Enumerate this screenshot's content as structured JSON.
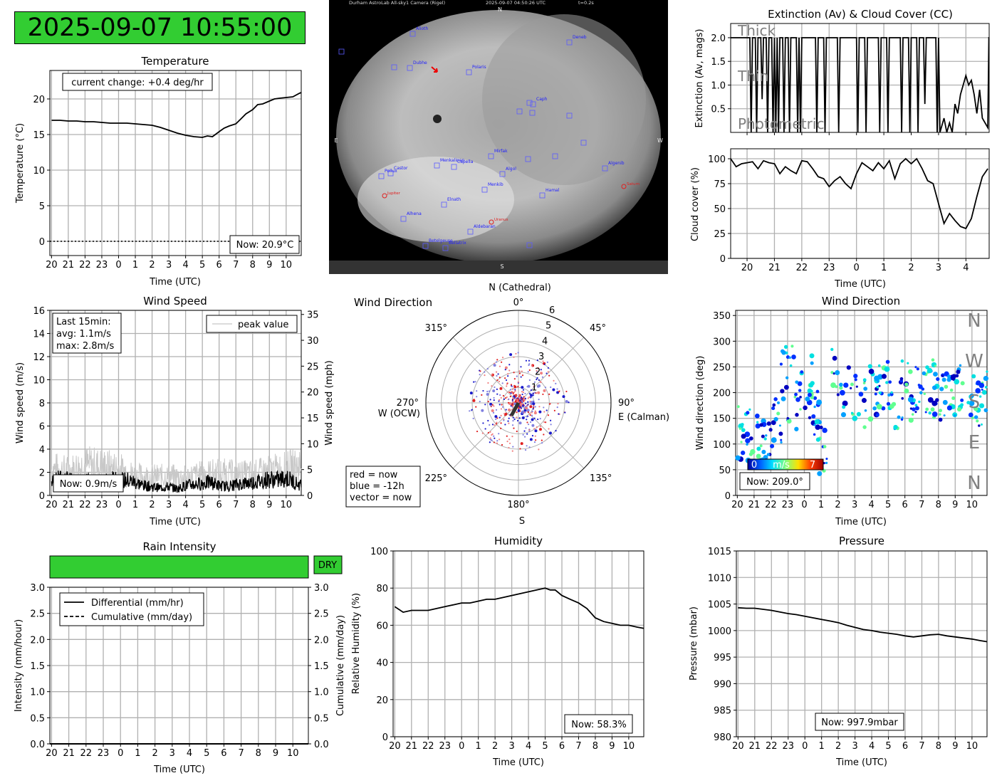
{
  "clock": "2025-09-07 10:55:00",
  "colors": {
    "ok_green": "#32cd32",
    "grid": "#b0b0b0",
    "peak_gray": "#c8c8c8",
    "label_gray": "#808080"
  },
  "sky_camera": {
    "header_left": "Durham AstroLab All-sky1 Camera (Rigel)",
    "header_date": "2025-09-07 04:50:26 UTC",
    "header_exp": "t=0.2s",
    "compass": {
      "n": "N",
      "s": "S",
      "e": "E",
      "w": "W"
    },
    "stars": [
      "Alioth",
      "Deneb",
      "Dubhe",
      "Polaris",
      "Caph",
      "Mirfak",
      "Menkalinan",
      "Capella",
      "Castor",
      "Pollux",
      "Algol",
      "Algenib",
      "Menkib",
      "Hamal",
      "Elnath",
      "Alhena",
      "Aldebaran",
      "Betelgeuse",
      "Bellatrix"
    ],
    "planets": [
      "Jupiter",
      "Uranus",
      "Saturn"
    ]
  },
  "temperature": {
    "title": "Temperature",
    "ylabel": "Temperature (°C)",
    "xlabel": "Time (UTC)",
    "change": "current change: +0.4 deg/hr",
    "now": "Now: 20.9°C"
  },
  "extinction": {
    "title": "Extinction (Av) & Cloud Cover (CC)",
    "ylabel": "Extinction (Av, mags)",
    "bands": [
      "Thick",
      "Thin",
      "Photometric"
    ]
  },
  "cloud": {
    "ylabel": "Cloud cover (%)",
    "xlabel": "Time (UTC)"
  },
  "wind_speed": {
    "title": "Wind Speed",
    "ylabel": "Wind speed (m/s)",
    "ylabel2": "Wind speed (mph)",
    "xlabel": "Time (UTC)",
    "legend": "peak value",
    "stats": [
      "Last 15min:",
      "avg: 1.1m/s",
      "max: 2.8m/s"
    ],
    "now": "Now: 0.9m/s"
  },
  "wind_polar": {
    "title": "Wind Direction",
    "label_n": "N (Cathedral)",
    "label_e": "E (Calman)",
    "label_w": "W (OCW)",
    "label_s": "S",
    "angles": [
      "0°",
      "45°",
      "90°",
      "135°",
      "180°",
      "225°",
      "270°",
      "315°"
    ],
    "rings": [
      "1",
      "2",
      "3",
      "4",
      "5",
      "6"
    ],
    "legend": [
      "red = now",
      "blue = -12h",
      "vector = now"
    ]
  },
  "wind_dir": {
    "title": "Wind Direction",
    "ylabel": "Wind direction (deg)",
    "xlabel": "Time (UTC)",
    "compass": [
      "N",
      "W",
      "S",
      "E",
      "N"
    ],
    "cbar": [
      "0",
      "m/s",
      "7"
    ],
    "now": "Now: 209.0°"
  },
  "rain": {
    "title": "Rain Intensity",
    "status": "DRY",
    "ylabel": "Intensity (mm/hour)",
    "ylabel2": "Cumulative (mm/day)",
    "xlabel": "Time (UTC)",
    "legend": [
      "Differential (mm/hr)",
      "Cumulative (mm/day)"
    ]
  },
  "humidity": {
    "title": "Humidity",
    "ylabel": "Relative Humidity (%)",
    "xlabel": "Time (UTC)",
    "now": "Now: 58.3%"
  },
  "pressure": {
    "title": "Pressure",
    "ylabel": "Pressure (mbar)",
    "xlabel": "Time (UTC)",
    "now": "Now: 997.9mbar"
  },
  "chart_data": [
    {
      "id": "temperature",
      "type": "line",
      "x_ticks": [
        "20",
        "21",
        "22",
        "23",
        "0",
        "1",
        "2",
        "3",
        "4",
        "5",
        "6",
        "7",
        "8",
        "9",
        "10"
      ],
      "yticks": [
        "0",
        "5",
        "10",
        "15",
        "20"
      ],
      "ylim": [
        -2,
        24
      ],
      "grid": true,
      "series": [
        {
          "x": [
            20,
            20.5,
            21,
            21.5,
            22,
            22.5,
            23,
            23.5,
            24,
            24.5,
            25,
            25.5,
            26,
            26.5,
            27,
            27.5,
            28,
            28.5,
            29,
            29.3,
            29.6,
            30,
            30.3,
            30.6,
            31,
            31.3,
            31.6,
            32,
            32.3,
            32.6,
            33,
            33.3,
            33.6,
            34,
            34.4,
            34.8,
            34.9
          ],
          "y": [
            17,
            17,
            16.9,
            16.9,
            16.8,
            16.8,
            16.7,
            16.6,
            16.6,
            16.6,
            16.5,
            16.4,
            16.3,
            16,
            15.6,
            15.2,
            14.9,
            14.7,
            14.6,
            14.8,
            14.7,
            15.4,
            15.9,
            16.2,
            16.5,
            17.2,
            17.9,
            18.5,
            19.2,
            19.3,
            19.7,
            20,
            20.1,
            20.2,
            20.3,
            20.8,
            20.9
          ]
        }
      ]
    },
    {
      "id": "extinction",
      "type": "line",
      "yticks": [
        "0.5",
        "1.0",
        "1.5",
        "2.0"
      ],
      "ylim": [
        0,
        2.3
      ],
      "grid": true,
      "series": [
        {
          "x": [
            19.4,
            20.1,
            20.15,
            20.2,
            20.3,
            20.35,
            20.4,
            20.5,
            20.55,
            20.6,
            20.7,
            20.75,
            20.8,
            20.9,
            20.95,
            21,
            21.05,
            21.1,
            21.15,
            21.2,
            21.3,
            21.35,
            21.4,
            21.5,
            21.55,
            21.6,
            21.8,
            21.85,
            21.9,
            21.95,
            22,
            22.5,
            22.55,
            22.6,
            22.8,
            22.85,
            22.9,
            23.3,
            23.35,
            23.4,
            24,
            24.05,
            24.1,
            24.3,
            24.35,
            24.4,
            24.8,
            24.85,
            24.9,
            25.1,
            25.15,
            25.2,
            25.6,
            25.65,
            25.7,
            25.9,
            25.95,
            26,
            26.2,
            26.25,
            26.3,
            26.45,
            26.5,
            26.55,
            26.9,
            26.95,
            27,
            27.05,
            27.2,
            27.3,
            27.4,
            27.5,
            27.6,
            27.7,
            27.8,
            27.9,
            28,
            28.1,
            28.2,
            28.3,
            28.4,
            28.5,
            28.6,
            28.8,
            28.84,
            28.85
          ],
          "y": [
            2,
            2,
            0,
            2,
            2,
            0,
            2,
            2,
            0.7,
            2,
            2,
            0,
            2,
            2,
            0,
            2,
            0,
            2,
            0,
            2,
            2,
            0,
            2,
            2,
            0,
            2,
            2,
            0,
            2,
            0,
            2,
            2,
            0,
            2,
            2,
            0,
            2,
            2,
            0,
            2,
            2,
            0,
            2,
            2,
            0,
            2,
            2,
            0,
            2,
            2,
            0,
            2,
            2,
            0,
            2,
            2,
            0,
            2,
            2,
            0,
            2,
            2,
            0.6,
            2,
            2,
            0,
            2,
            0,
            0.3,
            0,
            0.2,
            0,
            0.6,
            0.4,
            0.8,
            1.0,
            1.2,
            1.0,
            1.1,
            0.8,
            0.4,
            0.9,
            0.3,
            0.1,
            2,
            2
          ]
        }
      ]
    },
    {
      "id": "cloud_cover",
      "type": "line",
      "x_ticks": [
        "20",
        "21",
        "22",
        "23",
        "0",
        "1",
        "2",
        "3",
        "4"
      ],
      "yticks": [
        "0",
        "25",
        "50",
        "75",
        "100"
      ],
      "ylim": [
        0,
        110
      ],
      "grid": true,
      "series": [
        {
          "x": [
            19.4,
            19.6,
            19.8,
            20,
            20.2,
            20.4,
            20.6,
            20.8,
            21,
            21.2,
            21.4,
            21.6,
            21.8,
            22,
            22.2,
            22.4,
            22.6,
            22.8,
            23,
            23.2,
            23.4,
            23.6,
            23.8,
            24,
            24.2,
            24.4,
            24.6,
            24.8,
            25,
            25.2,
            25.4,
            25.6,
            25.8,
            26,
            26.2,
            26.4,
            26.6,
            26.8,
            27,
            27.2,
            27.4,
            27.6,
            27.8,
            28,
            28.2,
            28.4,
            28.6,
            28.8
          ],
          "y": [
            100,
            92,
            95,
            96,
            97,
            90,
            98,
            96,
            95,
            85,
            92,
            88,
            85,
            98,
            97,
            90,
            82,
            80,
            72,
            78,
            82,
            75,
            70,
            85,
            96,
            92,
            88,
            96,
            90,
            98,
            80,
            95,
            100,
            95,
            100,
            90,
            78,
            75,
            55,
            35,
            45,
            38,
            32,
            30,
            40,
            62,
            82,
            90
          ]
        }
      ]
    },
    {
      "id": "wind_speed",
      "type": "line",
      "x_ticks": [
        "20",
        "21",
        "22",
        "23",
        "0",
        "1",
        "2",
        "3",
        "4",
        "5",
        "6",
        "7",
        "8",
        "9",
        "10"
      ],
      "yticks": [
        "0",
        "2",
        "4",
        "6",
        "8",
        "10",
        "12",
        "14",
        "16"
      ],
      "ylim": [
        0,
        16
      ],
      "y2ticks": [
        "0",
        "5",
        "10",
        "15",
        "20",
        "25",
        "30",
        "35"
      ],
      "series": [
        {
          "name": "peak value",
          "x": [
            20,
            21,
            22,
            23,
            24,
            25,
            26,
            27,
            28,
            29,
            30,
            31,
            32,
            33,
            34,
            34.9
          ],
          "y": [
            3.5,
            3.2,
            4.0,
            3.8,
            3.5,
            2.6,
            2.5,
            2.5,
            2.4,
            2.8,
            3.0,
            2.8,
            2.8,
            3.2,
            3.5,
            4.0
          ]
        },
        {
          "x": [
            20,
            20.5,
            21,
            21.5,
            22,
            22.5,
            23,
            23.5,
            24,
            24.5,
            25,
            25.5,
            26,
            26.5,
            27,
            27.5,
            28,
            28.5,
            29,
            29.5,
            30,
            30.5,
            31,
            31.5,
            32,
            32.5,
            33,
            33.5,
            34,
            34.5,
            34.9
          ],
          "y": [
            1.2,
            1.5,
            1.4,
            1.1,
            1.3,
            1.2,
            1.0,
            1.5,
            1.3,
            1.4,
            1.2,
            0.9,
            0.8,
            0.7,
            0.8,
            0.6,
            0.9,
            1.0,
            1.1,
            1.2,
            0.9,
            0.8,
            1.0,
            1.1,
            1.2,
            1.3,
            1.5,
            1.4,
            1.6,
            1.2,
            0.9
          ]
        }
      ]
    },
    {
      "id": "wind_polar",
      "type": "scatter",
      "rlim": [
        0,
        6
      ]
    },
    {
      "id": "wind_direction",
      "type": "scatter",
      "x_ticks": [
        "20",
        "21",
        "22",
        "23",
        "0",
        "1",
        "2",
        "3",
        "4",
        "5",
        "6",
        "7",
        "8",
        "9",
        "10"
      ],
      "yticks": [
        "0",
        "50",
        "100",
        "150",
        "200",
        "250",
        "300",
        "350"
      ],
      "ylim": [
        0,
        360
      ]
    },
    {
      "id": "rain",
      "type": "line",
      "x_ticks": [
        "20",
        "21",
        "22",
        "23",
        "0",
        "1",
        "2",
        "3",
        "4",
        "5",
        "6",
        "7",
        "8",
        "9",
        "10"
      ],
      "yticks": [
        "0.0",
        "0.5",
        "1.0",
        "1.5",
        "2.0",
        "2.5",
        "3.0"
      ],
      "ylim": [
        0,
        3
      ],
      "series": [
        {
          "name": "Differential (mm/hr)",
          "values": [
            0
          ]
        },
        {
          "name": "Cumulative (mm/day)",
          "values": [
            0
          ]
        }
      ]
    },
    {
      "id": "humidity",
      "type": "line",
      "x_ticks": [
        "20",
        "21",
        "22",
        "23",
        "0",
        "1",
        "2",
        "3",
        "4",
        "5",
        "6",
        "7",
        "8",
        "9",
        "10"
      ],
      "yticks": [
        "0",
        "20",
        "40",
        "60",
        "80",
        "100"
      ],
      "ylim": [
        0,
        100
      ],
      "series": [
        {
          "x": [
            20,
            20.5,
            21,
            21.5,
            22,
            22.5,
            23,
            23.5,
            24,
            24.5,
            25,
            25.5,
            26,
            26.5,
            27,
            27.5,
            28,
            28.5,
            29,
            29.3,
            29.6,
            30,
            30.5,
            31,
            31.5,
            32,
            32.5,
            33,
            33.5,
            34,
            34.5,
            34.9
          ],
          "y": [
            70,
            67,
            68,
            68,
            68,
            69,
            70,
            71,
            72,
            72,
            73,
            74,
            74,
            75,
            76,
            77,
            78,
            79,
            80,
            79,
            79,
            76,
            74,
            72,
            69,
            64,
            62,
            61,
            60,
            60,
            59,
            58.3
          ]
        }
      ]
    },
    {
      "id": "pressure",
      "type": "line",
      "x_ticks": [
        "20",
        "21",
        "22",
        "23",
        "0",
        "1",
        "2",
        "3",
        "4",
        "5",
        "6",
        "7",
        "8",
        "9",
        "10"
      ],
      "yticks": [
        "980",
        "985",
        "990",
        "995",
        "1000",
        "1005",
        "1010",
        "1015"
      ],
      "ylim": [
        980,
        1015
      ],
      "series": [
        {
          "x": [
            20,
            20.5,
            21,
            21.5,
            22,
            22.5,
            23,
            23.5,
            24,
            24.5,
            25,
            25.5,
            26,
            26.5,
            27,
            27.5,
            28,
            28.5,
            29,
            29.5,
            30,
            30.5,
            31,
            31.5,
            32,
            32.5,
            33,
            33.5,
            34,
            34.5,
            34.9
          ],
          "y": [
            1004.3,
            1004.2,
            1004.2,
            1004,
            1003.8,
            1003.5,
            1003.2,
            1003,
            1002.7,
            1002.4,
            1002.1,
            1001.8,
            1001.5,
            1001,
            1000.6,
            1000.2,
            1000,
            999.7,
            999.5,
            999.3,
            999,
            998.8,
            999,
            999.2,
            999.3,
            999,
            998.8,
            998.6,
            998.4,
            998.1,
            997.9
          ]
        }
      ]
    }
  ]
}
